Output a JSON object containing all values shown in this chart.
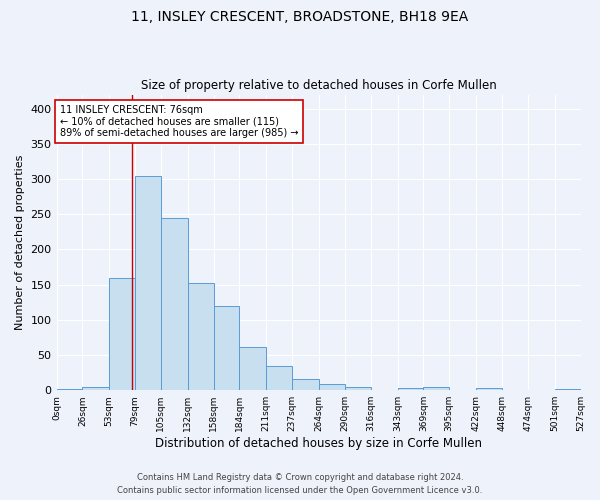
{
  "title": "11, INSLEY CRESCENT, BROADSTONE, BH18 9EA",
  "subtitle": "Size of property relative to detached houses in Corfe Mullen",
  "xlabel": "Distribution of detached houses by size in Corfe Mullen",
  "ylabel": "Number of detached properties",
  "footnote1": "Contains HM Land Registry data © Crown copyright and database right 2024.",
  "footnote2": "Contains public sector information licensed under the Open Government Licence v3.0.",
  "bar_edges": [
    0,
    26,
    53,
    79,
    105,
    132,
    158,
    184,
    211,
    237,
    264,
    290,
    316,
    343,
    369,
    395,
    422,
    448,
    474,
    501,
    527
  ],
  "bar_heights": [
    2,
    4,
    160,
    305,
    245,
    153,
    120,
    62,
    35,
    16,
    9,
    4,
    0,
    3,
    4,
    0,
    3,
    1,
    0,
    2
  ],
  "bar_color": "#c8dff0",
  "bar_edge_color": "#5b9bd5",
  "bg_color": "#eef2fb",
  "grid_color": "#ffffff",
  "vline_x": 76,
  "vline_color": "#cc0000",
  "annotation_text": "11 INSLEY CRESCENT: 76sqm\n← 10% of detached houses are smaller (115)\n89% of semi-detached houses are larger (985) →",
  "annotation_box_color": "#ffffff",
  "annotation_box_edge": "#cc0000",
  "tick_labels": [
    "0sqm",
    "26sqm",
    "53sqm",
    "79sqm",
    "105sqm",
    "132sqm",
    "158sqm",
    "184sqm",
    "211sqm",
    "237sqm",
    "264sqm",
    "290sqm",
    "316sqm",
    "343sqm",
    "369sqm",
    "395sqm",
    "422sqm",
    "448sqm",
    "474sqm",
    "501sqm",
    "527sqm"
  ],
  "ylim": [
    0,
    420
  ],
  "yticks": [
    0,
    50,
    100,
    150,
    200,
    250,
    300,
    350,
    400
  ]
}
